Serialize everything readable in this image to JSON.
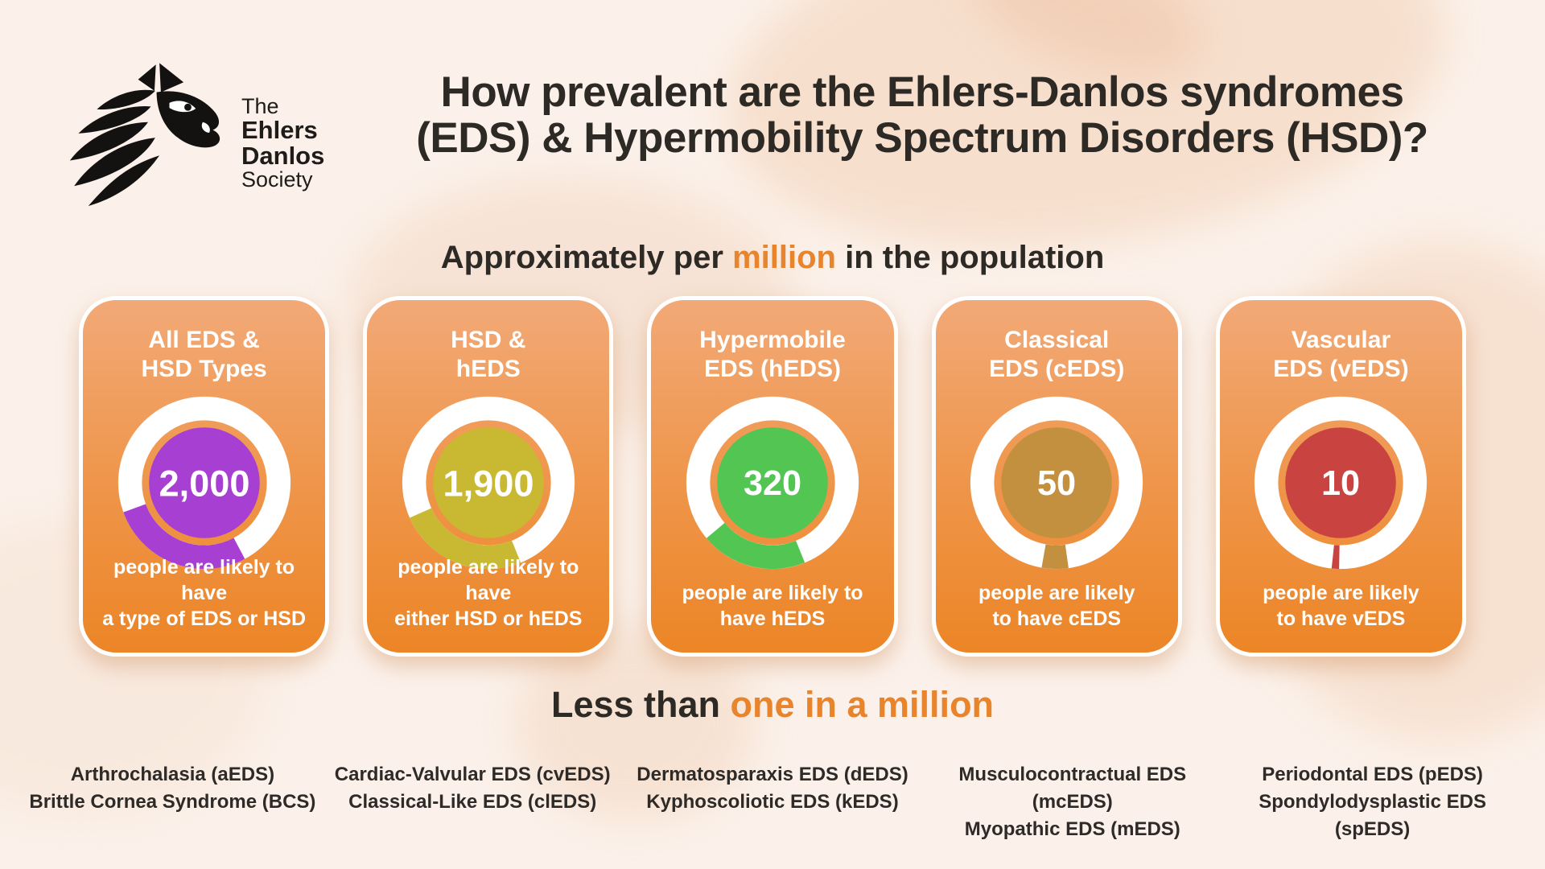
{
  "logo": {
    "line1": "The",
    "line2": "Ehlers",
    "line3": "Danlos",
    "line4": "Society"
  },
  "header": {
    "title_line1": "How prevalent are the Ehlers-Danlos syndromes",
    "title_line2": "(EDS) & Hypermobility Spectrum Disorders (HSD)?",
    "subtitle_prefix": "Approximately per ",
    "subtitle_highlight": "million",
    "subtitle_suffix": " in the population",
    "accent_color": "#e8842b",
    "text_color": "#2d2a26"
  },
  "cards": [
    {
      "title_line1": "All EDS &",
      "title_line2": "HSD Types",
      "value": 2000,
      "value_label": "2,000",
      "caption_line1": "people are likely to have",
      "caption_line2": "a type of EDS or HSD",
      "color": "#a73fd3",
      "arc_start_deg": 152,
      "arc_span_deg": 98
    },
    {
      "title_line1": "HSD &",
      "title_line2": "hEDS",
      "value": 1900,
      "value_label": "1,900",
      "caption_line1": "people are likely to have",
      "caption_line2": "either HSD or hEDS",
      "color": "#c8b832",
      "arc_start_deg": 158,
      "arc_span_deg": 88
    },
    {
      "title_line1": "Hypermobile",
      "title_line2": "EDS (hEDS)",
      "value": 320,
      "value_label": "320",
      "caption_line1": "people are likely to",
      "caption_line2": "have hEDS",
      "color": "#52c552",
      "arc_start_deg": 158,
      "arc_span_deg": 72
    },
    {
      "title_line1": "Classical",
      "title_line2": "EDS (cEDS)",
      "value": 50,
      "value_label": "50",
      "caption_line1": "people are likely",
      "caption_line2": "to have cEDS",
      "color": "#c3903f",
      "arc_start_deg": 172,
      "arc_span_deg": 18
    },
    {
      "title_line1": "Vascular",
      "title_line2": "EDS (vEDS)",
      "value": 10,
      "value_label": "10",
      "caption_line1": "people are likely",
      "caption_line2": "to have vEDS",
      "color": "#c94440",
      "arc_start_deg": 181,
      "arc_span_deg": 5
    }
  ],
  "chart_data": {
    "type": "pie",
    "subtype": "donut-gauges",
    "title": "How prevalent are the Ehlers-Danlos syndromes (EDS) & Hypermobility Spectrum Disorders (HSD)?",
    "subtitle": "Approximately per million in the population",
    "categories": [
      "All EDS & HSD Types",
      "HSD & hEDS",
      "Hypermobile EDS (hEDS)",
      "Classical EDS (cEDS)",
      "Vascular EDS (vEDS)"
    ],
    "values": [
      2000,
      1900,
      320,
      50,
      10
    ],
    "unit": "people per million in the population",
    "colors": [
      "#a73fd3",
      "#c8b832",
      "#52c552",
      "#c3903f",
      "#c94440"
    ],
    "legend_position": "none",
    "grid": false
  },
  "footer": {
    "heading_prefix": "Less than ",
    "heading_highlight": "one in a million",
    "items": [
      {
        "line1": "Arthrochalasia (aEDS)",
        "line2": "Brittle Cornea Syndrome (BCS)"
      },
      {
        "line1": "Cardiac-Valvular EDS (cvEDS)",
        "line2": "Classical-Like EDS (clEDS)"
      },
      {
        "line1": "Dermatosparaxis EDS (dEDS)",
        "line2": "Kyphoscoliotic EDS (kEDS)"
      },
      {
        "line1": "Musculocontractual EDS (mcEDS)",
        "line2": "Myopathic EDS (mEDS)"
      },
      {
        "line1": "Periodontal EDS (pEDS)",
        "line2": "Spondylodysplastic EDS (spEDS)"
      }
    ]
  }
}
